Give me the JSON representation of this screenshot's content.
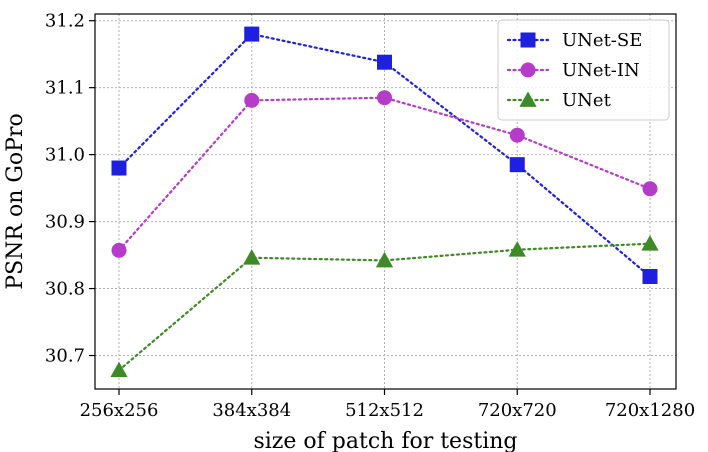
{
  "chart_data": {
    "type": "line",
    "xlabel": "size of patch for testing",
    "ylabel": "PSNR on GoPro",
    "categories": [
      "256x256",
      "384x384",
      "512x512",
      "720x720",
      "720x1280"
    ],
    "ylim": [
      30.65,
      31.21
    ],
    "yticks": [
      30.7,
      30.8,
      30.9,
      31.0,
      31.1,
      31.2
    ],
    "ytick_labels": [
      "30.7",
      "30.8",
      "30.9",
      "31.0",
      "31.1",
      "31.2"
    ],
    "grid": true,
    "legend_position": "top-right",
    "series": [
      {
        "name": "UNet-SE",
        "values": [
          30.98,
          31.18,
          31.138,
          30.985,
          30.818
        ],
        "color": "#1f1fe0",
        "marker": "square"
      },
      {
        "name": "UNet-IN",
        "values": [
          30.857,
          31.081,
          31.085,
          31.029,
          30.949
        ],
        "color": "#b43cc8",
        "marker": "circle"
      },
      {
        "name": "UNet",
        "values": [
          30.678,
          30.846,
          30.842,
          30.858,
          30.867
        ],
        "color": "#3f8a26",
        "marker": "triangle"
      }
    ]
  }
}
